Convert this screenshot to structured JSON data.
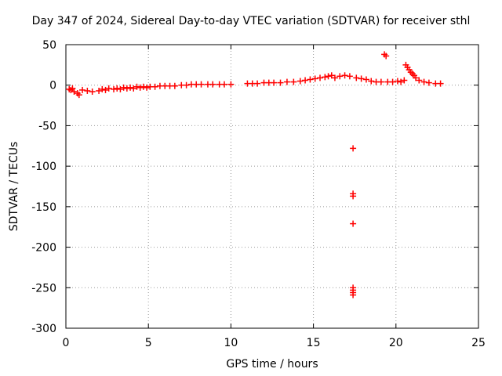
{
  "chart_data": {
    "type": "scatter",
    "title": "Day 347 of 2024, Sidereal Day-to-day VTEC variation (SDTVAR) for receiver sthl",
    "xlabel": "GPS time / hours",
    "ylabel": "SDTVAR / TECUs",
    "xlim": [
      0,
      25
    ],
    "ylim": [
      -300,
      50
    ],
    "xticks": [
      0,
      5,
      10,
      15,
      20,
      25
    ],
    "yticks": [
      -300,
      -250,
      -200,
      -150,
      -100,
      -50,
      0,
      50
    ],
    "grid": true,
    "grid_style": "dotted",
    "marker": "+",
    "marker_color": "#ff0000",
    "points": [
      [
        0.2,
        -5
      ],
      [
        0.3,
        -6
      ],
      [
        0.4,
        -4
      ],
      [
        0.5,
        -8
      ],
      [
        0.7,
        -10
      ],
      [
        0.8,
        -12
      ],
      [
        1.0,
        -6
      ],
      [
        1.3,
        -7
      ],
      [
        1.6,
        -8
      ],
      [
        2.0,
        -7
      ],
      [
        2.2,
        -5
      ],
      [
        2.4,
        -6
      ],
      [
        2.6,
        -4
      ],
      [
        2.9,
        -5
      ],
      [
        3.1,
        -4
      ],
      [
        3.3,
        -5
      ],
      [
        3.5,
        -3
      ],
      [
        3.7,
        -4
      ],
      [
        3.9,
        -3
      ],
      [
        4.1,
        -4
      ],
      [
        4.3,
        -2
      ],
      [
        4.5,
        -3
      ],
      [
        4.7,
        -2
      ],
      [
        4.9,
        -3
      ],
      [
        5.1,
        -2
      ],
      [
        5.4,
        -2
      ],
      [
        5.7,
        -1
      ],
      [
        6.0,
        -1
      ],
      [
        6.3,
        -1
      ],
      [
        6.6,
        -1
      ],
      [
        7.0,
        0
      ],
      [
        7.3,
        0
      ],
      [
        7.6,
        1
      ],
      [
        7.9,
        1
      ],
      [
        8.2,
        1
      ],
      [
        8.6,
        1
      ],
      [
        8.9,
        1
      ],
      [
        9.3,
        1
      ],
      [
        9.6,
        1
      ],
      [
        10.0,
        1
      ],
      [
        11.0,
        2
      ],
      [
        11.3,
        2
      ],
      [
        11.6,
        2
      ],
      [
        12.0,
        3
      ],
      [
        12.3,
        3
      ],
      [
        12.6,
        3
      ],
      [
        13.0,
        3
      ],
      [
        13.4,
        4
      ],
      [
        13.8,
        4
      ],
      [
        14.2,
        5
      ],
      [
        14.5,
        6
      ],
      [
        14.8,
        7
      ],
      [
        15.1,
        8
      ],
      [
        15.4,
        9
      ],
      [
        15.7,
        10
      ],
      [
        15.9,
        11
      ],
      [
        16.1,
        12
      ],
      [
        16.3,
        9
      ],
      [
        16.6,
        11
      ],
      [
        16.9,
        12
      ],
      [
        17.2,
        11
      ],
      [
        17.4,
        -78
      ],
      [
        17.4,
        -134
      ],
      [
        17.4,
        -137
      ],
      [
        17.4,
        -171
      ],
      [
        17.4,
        -250
      ],
      [
        17.4,
        -253
      ],
      [
        17.4,
        -256
      ],
      [
        17.4,
        -259
      ],
      [
        17.6,
        9
      ],
      [
        17.9,
        8
      ],
      [
        18.2,
        7
      ],
      [
        18.5,
        5
      ],
      [
        18.8,
        4
      ],
      [
        19.1,
        4
      ],
      [
        19.3,
        38
      ],
      [
        19.4,
        36
      ],
      [
        19.5,
        4
      ],
      [
        19.8,
        4
      ],
      [
        20.1,
        5
      ],
      [
        20.3,
        4
      ],
      [
        20.5,
        6
      ],
      [
        20.6,
        25
      ],
      [
        20.7,
        22
      ],
      [
        20.8,
        19
      ],
      [
        20.9,
        16
      ],
      [
        21.0,
        14
      ],
      [
        21.1,
        12
      ],
      [
        21.2,
        9
      ],
      [
        21.4,
        6
      ],
      [
        21.7,
        4
      ],
      [
        22.0,
        3
      ],
      [
        22.4,
        2
      ],
      [
        22.7,
        2
      ]
    ]
  }
}
